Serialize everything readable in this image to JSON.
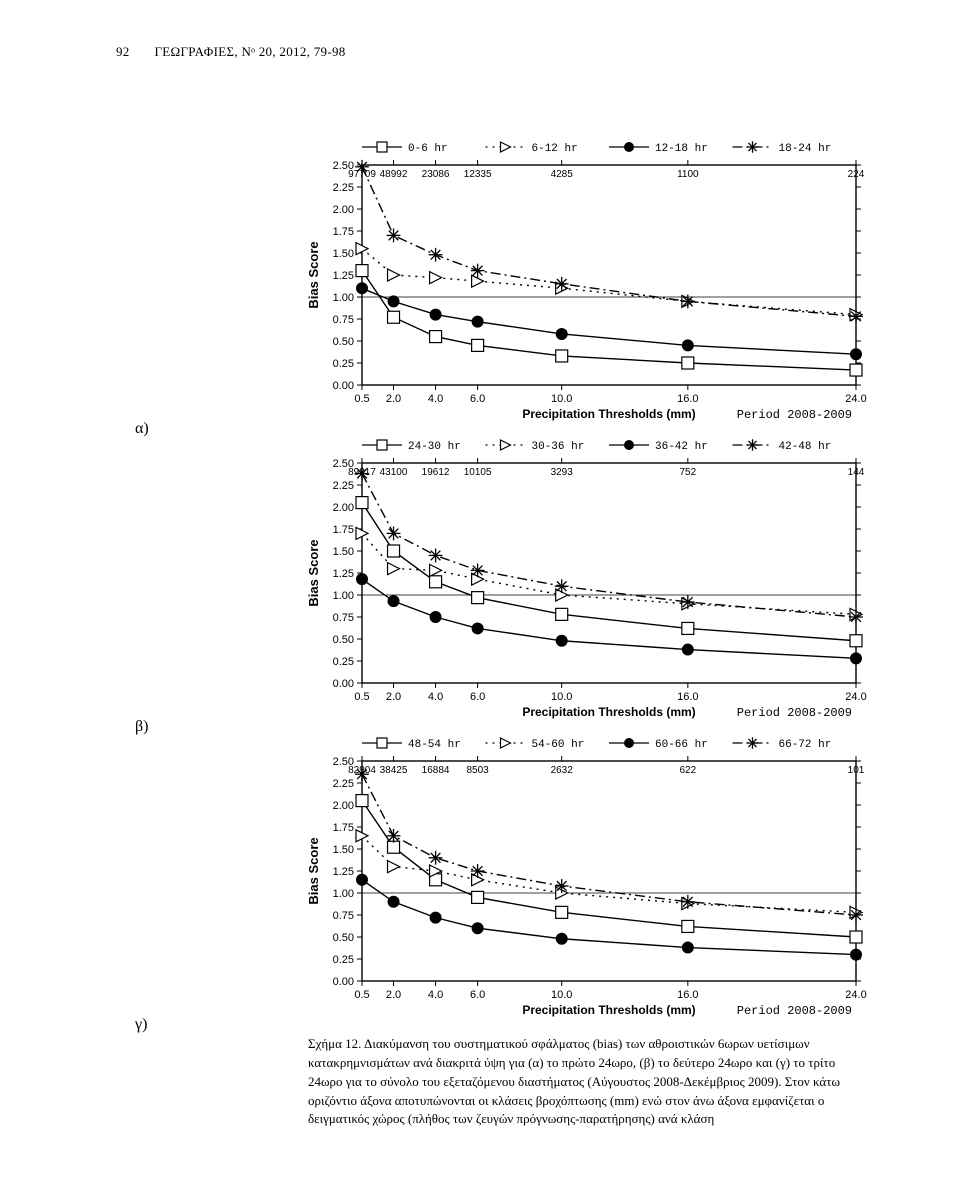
{
  "header": "ΓΕΩΓΡΑΦΙΕΣ, Νᵒ 20, 2012, 79-98",
  "page_number": "92",
  "panel_labels": {
    "a": "α)",
    "b": "β)",
    "c": "γ)"
  },
  "caption": {
    "title": "Σχήμα 12.",
    "body": "Διακύμανση του συστηματικού σφάλματος (bias) των αθροιστικών 6ωρων υετίσιμων κατακρημνισμάτων ανά διακριτά ύψη για (α) το πρώτο 24ωρο, (β) το δεύτερο 24ωρο και (γ) το τρίτο 24ωρο για το σύνολο του εξεταζόμενου διαστήματος (Αύγουστος 2008-Δεκέμβριος 2009). Στον κάτω οριζόντιο άξονα αποτυπώνονται οι κλάσεις βροχόπτωσης (mm) ενώ στον άνω άξονα εμφανίζεται ο δειγματικός χώρος (πλήθος των ζευγών πρόγνωσης-παρατήρησης) ανά κλάση"
  },
  "charts": {
    "common": {
      "x_ticks": [
        0.5,
        2.0,
        4.0,
        6.0,
        10.0,
        16.0,
        24.0
      ],
      "y_ticks": [
        0.0,
        0.25,
        0.5,
        0.75,
        1.0,
        1.25,
        1.5,
        1.75,
        2.0,
        2.25,
        2.5
      ],
      "x_label": "Precipitation Thresholds (mm)",
      "y_label": "Bias Score",
      "period_label": "Period 2008-2009",
      "ylim": [
        0.0,
        2.5
      ],
      "line_color": "#000000",
      "background_color": "#ffffff",
      "axis_fontsize": 12,
      "label_fontsize": 12,
      "marker_size": 6,
      "line_width": 1.4
    },
    "a": {
      "legend": [
        "0-6 hr",
        "6-12 hr",
        "12-18 hr",
        "18-24 hr"
      ],
      "top_counts": [
        "97709",
        "48992",
        "23086",
        "12335",
        "4285",
        "1100",
        "224"
      ],
      "series": {
        "s1": {
          "x": [
            0.5,
            2,
            4,
            6,
            10,
            16,
            24
          ],
          "y": [
            1.3,
            0.77,
            0.55,
            0.45,
            0.33,
            0.25,
            0.17
          ],
          "marker": "square-open",
          "dash": "solid"
        },
        "s2": {
          "x": [
            0.5,
            2,
            4,
            6,
            10,
            16,
            24
          ],
          "y": [
            1.55,
            1.25,
            1.22,
            1.18,
            1.1,
            0.95,
            0.8
          ],
          "marker": "triright-open",
          "dash": "dot"
        },
        "s3": {
          "x": [
            0.5,
            2,
            4,
            6,
            10,
            16,
            24
          ],
          "y": [
            1.1,
            0.95,
            0.8,
            0.72,
            0.58,
            0.45,
            0.35
          ],
          "marker": "circle",
          "dash": "solid"
        },
        "s4": {
          "x": [
            0.5,
            2,
            4,
            6,
            10,
            16,
            24
          ],
          "y": [
            2.48,
            1.7,
            1.48,
            1.3,
            1.15,
            0.95,
            0.78
          ],
          "marker": "asterisk",
          "dash": "dashdot"
        }
      }
    },
    "b": {
      "legend": [
        "24-30 hr",
        "30-36 hr",
        "36-42 hr",
        "42-48 hr"
      ],
      "top_counts": [
        "89817",
        "43100",
        "19612",
        "10105",
        "3293",
        "752",
        "144"
      ],
      "series": {
        "s1": {
          "x": [
            0.5,
            2,
            4,
            6,
            10,
            16,
            24
          ],
          "y": [
            2.05,
            1.5,
            1.15,
            0.97,
            0.78,
            0.62,
            0.48
          ],
          "marker": "square-open",
          "dash": "solid"
        },
        "s2": {
          "x": [
            0.5,
            2,
            4,
            6,
            10,
            16,
            24
          ],
          "y": [
            1.7,
            1.3,
            1.28,
            1.18,
            1.0,
            0.9,
            0.78
          ],
          "marker": "triright-open",
          "dash": "dot"
        },
        "s3": {
          "x": [
            0.5,
            2,
            4,
            6,
            10,
            16,
            24
          ],
          "y": [
            1.18,
            0.93,
            0.75,
            0.62,
            0.48,
            0.38,
            0.28
          ],
          "marker": "circle",
          "dash": "solid"
        },
        "s4": {
          "x": [
            0.5,
            2,
            4,
            6,
            10,
            16,
            24
          ],
          "y": [
            2.38,
            1.7,
            1.45,
            1.28,
            1.1,
            0.92,
            0.75
          ],
          "marker": "asterisk",
          "dash": "dashdot"
        }
      }
    },
    "c": {
      "legend": [
        "48-54 hr",
        "54-60 hr",
        "60-66 hr",
        "66-72 hr"
      ],
      "top_counts": [
        "82904",
        "38425",
        "16884",
        "8503",
        "2632",
        "622",
        "101"
      ],
      "series": {
        "s1": {
          "x": [
            0.5,
            2,
            4,
            6,
            10,
            16,
            24
          ],
          "y": [
            2.05,
            1.52,
            1.15,
            0.95,
            0.78,
            0.62,
            0.5
          ],
          "marker": "square-open",
          "dash": "solid"
        },
        "s2": {
          "x": [
            0.5,
            2,
            4,
            6,
            10,
            16,
            24
          ],
          "y": [
            1.65,
            1.3,
            1.25,
            1.15,
            1.0,
            0.88,
            0.78
          ],
          "marker": "triright-open",
          "dash": "dot"
        },
        "s3": {
          "x": [
            0.5,
            2,
            4,
            6,
            10,
            16,
            24
          ],
          "y": [
            1.15,
            0.9,
            0.72,
            0.6,
            0.48,
            0.38,
            0.3
          ],
          "marker": "circle",
          "dash": "solid"
        },
        "s4": {
          "x": [
            0.5,
            2,
            4,
            6,
            10,
            16,
            24
          ],
          "y": [
            2.35,
            1.65,
            1.4,
            1.25,
            1.08,
            0.9,
            0.75
          ],
          "marker": "asterisk",
          "dash": "dashdot"
        }
      }
    }
  }
}
